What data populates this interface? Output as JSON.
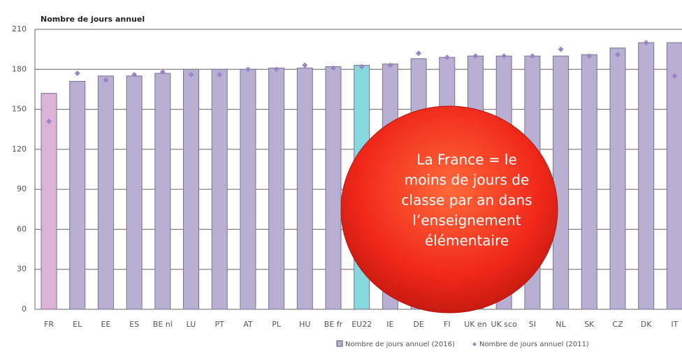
{
  "chart_data": {
    "type": "bar",
    "y_axis_label": "Nombre de jours annuel",
    "categories": [
      "FR",
      "EL",
      "EE",
      "ES",
      "BE nl",
      "LU",
      "PT",
      "AT",
      "PL",
      "HU",
      "BE fr",
      "EU22",
      "IE",
      "DE",
      "FI",
      "UK en",
      "UK sco",
      "SI",
      "NL",
      "SK",
      "CZ",
      "DK",
      "IT"
    ],
    "series": [
      {
        "name": "Nombre de jours annuel (2016)",
        "type": "bar",
        "color": "#b8b0d2",
        "colors": [
          "#dcb2d8",
          "#b8b0d2",
          "#b8b0d2",
          "#b8b0d2",
          "#b8b0d2",
          "#b8b0d2",
          "#b8b0d2",
          "#b8b0d2",
          "#b8b0d2",
          "#b8b0d2",
          "#b8b0d2",
          "#86d8de",
          "#b8b0d2",
          "#b8b0d2",
          "#b8b0d2",
          "#b8b0d2",
          "#b8b0d2",
          "#b8b0d2",
          "#b8b0d2",
          "#b8b0d2",
          "#b8b0d2",
          "#b8b0d2",
          "#b8b0d2"
        ],
        "values": [
          162,
          171,
          175,
          175,
          177,
          180,
          180,
          180,
          181,
          181,
          182,
          183,
          184,
          188,
          189,
          190,
          190,
          190,
          190,
          191,
          196,
          200,
          200
        ]
      },
      {
        "name": "Nombre de jours annuel (2011)",
        "type": "marker",
        "color": "#9a86c4",
        "values": [
          141,
          177,
          172,
          176,
          178,
          176,
          176,
          180,
          180,
          183,
          181,
          182,
          183,
          192,
          189,
          190,
          190,
          190,
          195,
          190,
          191,
          200,
          175
        ]
      }
    ],
    "ylim": [
      0,
      210
    ],
    "yticks": [
      0,
      30,
      60,
      90,
      120,
      150,
      180,
      210
    ],
    "grid": true,
    "annotation": [
      "La France = le",
      "moins de jours de",
      "classe par an dans",
      "l’enseignement",
      "élémentaire"
    ]
  }
}
